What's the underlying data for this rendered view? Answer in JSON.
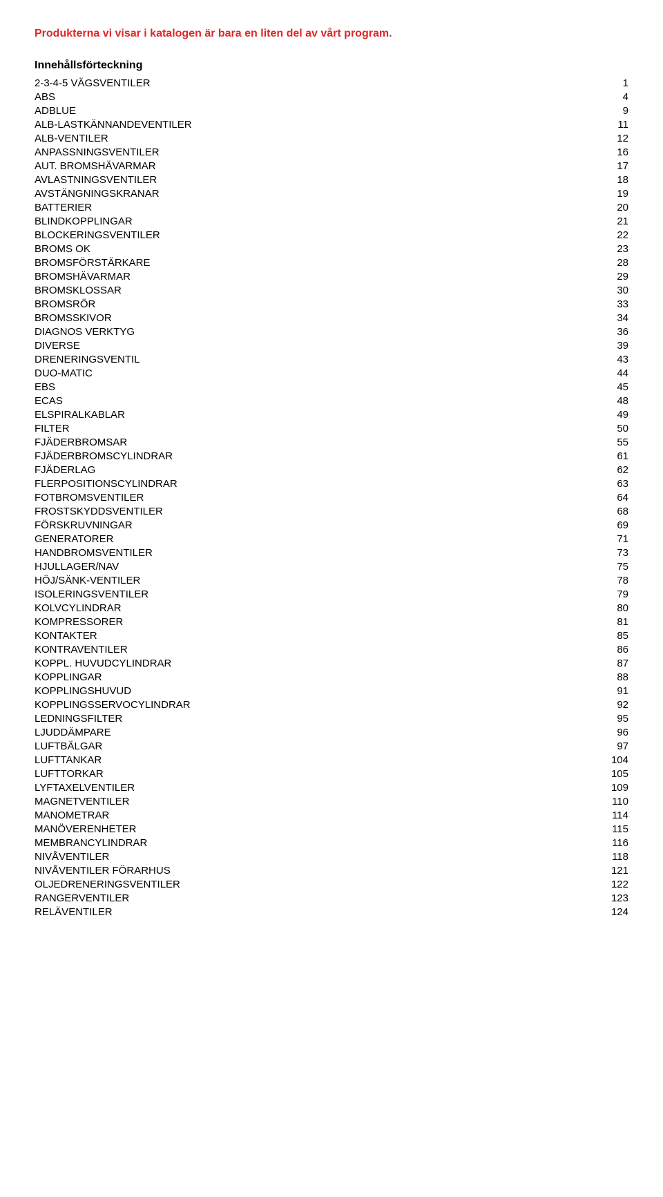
{
  "intro": "Produkterna vi visar i katalogen är bara en liten del av vårt program.",
  "toc_heading": "Innehållsförteckning",
  "colors": {
    "intro_text": "#de2827",
    "body_text": "#000000",
    "background": "#ffffff"
  },
  "typography": {
    "font_family": "Arial, Helvetica, sans-serif",
    "intro_fontsize": 16,
    "intro_fontweight": "bold",
    "heading_fontsize": 16,
    "heading_fontweight": "bold",
    "row_fontsize": 15
  },
  "toc": [
    {
      "label": "2-3-4-5 VÄGSVENTILER",
      "page": 1
    },
    {
      "label": "ABS",
      "page": 4
    },
    {
      "label": "ADBLUE",
      "page": 9
    },
    {
      "label": "ALB-LASTKÄNNANDEVENTILER",
      "page": 11
    },
    {
      "label": "ALB-VENTILER",
      "page": 12
    },
    {
      "label": "ANPASSNINGSVENTILER",
      "page": 16
    },
    {
      "label": "AUT. BROMSHÄVARMAR",
      "page": 17
    },
    {
      "label": "AVLASTNINGSVENTILER",
      "page": 18
    },
    {
      "label": "AVSTÄNGNINGSKRANAR",
      "page": 19
    },
    {
      "label": "BATTERIER",
      "page": 20
    },
    {
      "label": "BLINDKOPPLINGAR",
      "page": 21
    },
    {
      "label": "BLOCKERINGSVENTILER",
      "page": 22
    },
    {
      "label": "BROMS OK",
      "page": 23
    },
    {
      "label": "BROMSFÖRSTÄRKARE",
      "page": 28
    },
    {
      "label": "BROMSHÄVARMAR",
      "page": 29
    },
    {
      "label": "BROMSKLOSSAR",
      "page": 30
    },
    {
      "label": "BROMSRÖR",
      "page": 33
    },
    {
      "label": "BROMSSKIVOR",
      "page": 34
    },
    {
      "label": "DIAGNOS VERKTYG",
      "page": 36
    },
    {
      "label": "DIVERSE",
      "page": 39
    },
    {
      "label": "DRENERINGSVENTIL",
      "page": 43
    },
    {
      "label": "DUO-MATIC",
      "page": 44
    },
    {
      "label": "EBS",
      "page": 45
    },
    {
      "label": "ECAS",
      "page": 48
    },
    {
      "label": "ELSPIRALKABLAR",
      "page": 49
    },
    {
      "label": "FILTER",
      "page": 50
    },
    {
      "label": "FJÄDERBROMSAR",
      "page": 55
    },
    {
      "label": "FJÄDERBROMSCYLINDRAR",
      "page": 61
    },
    {
      "label": "FJÄDERLAG",
      "page": 62
    },
    {
      "label": "FLERPOSITIONSCYLINDRAR",
      "page": 63
    },
    {
      "label": "FOTBROMSVENTILER",
      "page": 64
    },
    {
      "label": "FROSTSKYDDSVENTILER",
      "page": 68
    },
    {
      "label": "FÖRSKRUVNINGAR",
      "page": 69
    },
    {
      "label": "GENERATORER",
      "page": 71
    },
    {
      "label": "HANDBROMSVENTILER",
      "page": 73
    },
    {
      "label": "HJULLAGER/NAV",
      "page": 75
    },
    {
      "label": "HÖJ/SÄNK-VENTILER",
      "page": 78
    },
    {
      "label": "ISOLERINGSVENTILER",
      "page": 79
    },
    {
      "label": "KOLVCYLINDRAR",
      "page": 80
    },
    {
      "label": "KOMPRESSORER",
      "page": 81
    },
    {
      "label": "KONTAKTER",
      "page": 85
    },
    {
      "label": "KONTRAVENTILER",
      "page": 86
    },
    {
      "label": "KOPPL. HUVUDCYLINDRAR",
      "page": 87
    },
    {
      "label": "KOPPLINGAR",
      "page": 88
    },
    {
      "label": "KOPPLINGSHUVUD",
      "page": 91
    },
    {
      "label": "KOPPLINGSSERVOCYLINDRAR",
      "page": 92
    },
    {
      "label": "LEDNINGSFILTER",
      "page": 95
    },
    {
      "label": "LJUDDÄMPARE",
      "page": 96
    },
    {
      "label": "LUFTBÄLGAR",
      "page": 97
    },
    {
      "label": "LUFTTANKAR",
      "page": 104
    },
    {
      "label": "LUFTTORKAR",
      "page": 105
    },
    {
      "label": "LYFTAXELVENTILER",
      "page": 109
    },
    {
      "label": "MAGNETVENTILER",
      "page": 110
    },
    {
      "label": "MANOMETRAR",
      "page": 114
    },
    {
      "label": "MANÖVERENHETER",
      "page": 115
    },
    {
      "label": "MEMBRANCYLINDRAR",
      "page": 116
    },
    {
      "label": "NIVÅVENTILER",
      "page": 118
    },
    {
      "label": "NIVÅVENTILER FÖRARHUS",
      "page": 121
    },
    {
      "label": "OLJEDRENERINGSVENTILER",
      "page": 122
    },
    {
      "label": "RANGERVENTILER",
      "page": 123
    },
    {
      "label": "RELÄVENTILER",
      "page": 124
    }
  ]
}
